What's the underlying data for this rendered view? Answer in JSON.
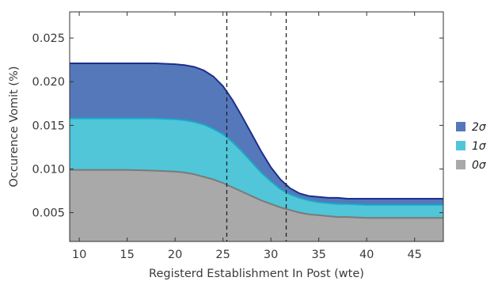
{
  "chart_data": {
    "type": "area",
    "title": "",
    "xlabel": "Registerd Establishment In Post (wte)",
    "ylabel": "Occurence Vomit (%)",
    "xlim": [
      9,
      48
    ],
    "ylim": [
      0.0017,
      0.028
    ],
    "x_ticks": [
      10,
      15,
      20,
      25,
      30,
      35,
      40,
      45
    ],
    "x_tick_labels": [
      "10",
      "15",
      "20",
      "25",
      "30",
      "35",
      "40",
      "45"
    ],
    "y_ticks": [
      0.005,
      0.01,
      0.015,
      0.02,
      0.025
    ],
    "y_tick_labels": [
      "0.005",
      "0.010",
      "0.015",
      "0.020",
      "0.025"
    ],
    "grid": false,
    "legend_position": "right",
    "vertical_lines": [
      25.4,
      31.6
    ],
    "series": [
      {
        "name": "2σ",
        "color": "#5578ba",
        "line_color": "#1c2f8c",
        "x": [
          9,
          12,
          15,
          18,
          20,
          21,
          22,
          23,
          24,
          25,
          26,
          27,
          28,
          29,
          30,
          31,
          32,
          33,
          34,
          35,
          36,
          37,
          38,
          40,
          42,
          44,
          46,
          48
        ],
        "y": [
          0.0221,
          0.0221,
          0.0221,
          0.0221,
          0.022,
          0.0219,
          0.0217,
          0.0213,
          0.0206,
          0.0195,
          0.0179,
          0.016,
          0.014,
          0.012,
          0.0102,
          0.0088,
          0.0078,
          0.0072,
          0.0069,
          0.0068,
          0.0067,
          0.0067,
          0.0066,
          0.0066,
          0.0066,
          0.0066,
          0.0066,
          0.0066
        ]
      },
      {
        "name": "1σ",
        "color": "#50c6d8",
        "line_color": "#1aa7c9",
        "x": [
          9,
          12,
          15,
          18,
          20,
          21,
          22,
          23,
          24,
          25,
          26,
          27,
          28,
          29,
          30,
          31,
          32,
          33,
          34,
          35,
          36,
          37,
          38,
          40,
          42,
          44,
          46,
          48
        ],
        "y": [
          0.0158,
          0.0158,
          0.0158,
          0.0158,
          0.0157,
          0.0156,
          0.0154,
          0.0151,
          0.0146,
          0.014,
          0.0131,
          0.012,
          0.0108,
          0.0096,
          0.0086,
          0.0077,
          0.0071,
          0.0067,
          0.0064,
          0.0062,
          0.0061,
          0.006,
          0.006,
          0.0059,
          0.0059,
          0.0059,
          0.0059,
          0.0059
        ]
      },
      {
        "name": "0σ",
        "color": "#a9a9a9",
        "line_color": "#7a7a7a",
        "x": [
          9,
          12,
          15,
          18,
          20,
          21,
          22,
          23,
          24,
          25,
          26,
          27,
          28,
          29,
          30,
          31,
          32,
          33,
          34,
          35,
          36,
          37,
          38,
          40,
          42,
          44,
          46,
          48
        ],
        "y": [
          0.0099,
          0.0099,
          0.0099,
          0.0098,
          0.0097,
          0.0096,
          0.0094,
          0.0091,
          0.0088,
          0.0084,
          0.0079,
          0.0074,
          0.0069,
          0.0064,
          0.006,
          0.0056,
          0.0053,
          0.005,
          0.0048,
          0.0047,
          0.0046,
          0.0045,
          0.0045,
          0.0044,
          0.0044,
          0.0044,
          0.0044,
          0.0044
        ]
      }
    ]
  }
}
